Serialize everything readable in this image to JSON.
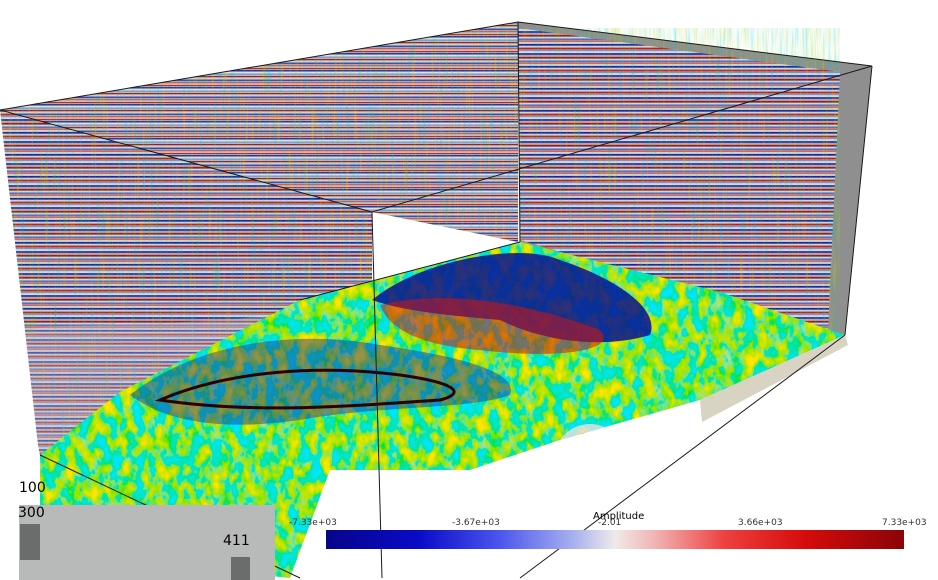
{
  "viewer": {
    "label_top": "100",
    "label_mid": "300",
    "label_right": "411"
  },
  "colorbar": {
    "title": "Amplitude",
    "ticks": [
      "-7.33e+03",
      "-3.67e+03",
      "-2.01",
      "3.66e+03",
      "7.33e+03"
    ],
    "colors": {
      "min": "#07058a",
      "mid": "#efeaea",
      "max": "#8a0408"
    }
  },
  "scene": {
    "background": "#ffffff",
    "wall_shadow": "#8f8f8f",
    "floor_ledge": "#d9d3c3"
  }
}
